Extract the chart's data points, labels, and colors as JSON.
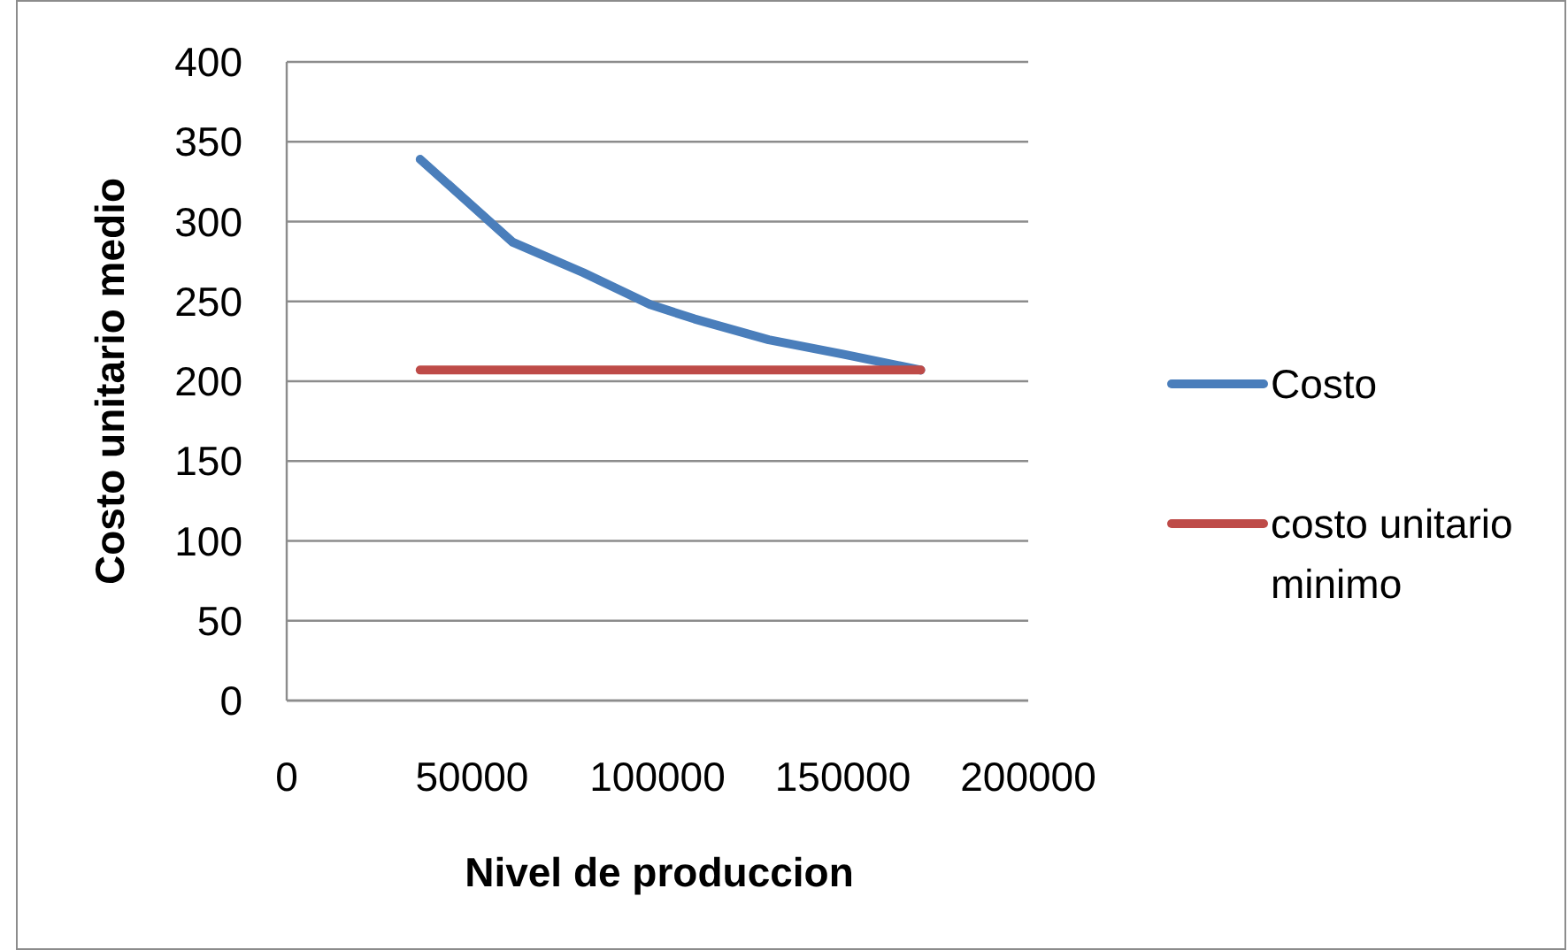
{
  "chart_data": {
    "type": "line",
    "xlabel": "Nivel de produccion",
    "ylabel": "Costo unitario medio",
    "series": [
      {
        "name": "Costo",
        "color": "#4a7ebb",
        "x": [
          36000,
          61000,
          80000,
          98000,
          110000,
          130000,
          150000,
          171000
        ],
        "values": [
          339,
          287,
          268,
          248,
          239,
          226,
          217,
          207
        ]
      },
      {
        "name": "costo unitario minimo",
        "color": "#be4b48",
        "x": [
          36000,
          171000
        ],
        "values": [
          207,
          207
        ]
      }
    ],
    "xlim": [
      0,
      200000
    ],
    "xticks": [
      0,
      50000,
      100000,
      150000,
      200000
    ],
    "ylim": [
      0,
      400
    ],
    "yticks": [
      0,
      50,
      100,
      150,
      200,
      250,
      300,
      350,
      400
    ],
    "grid": "y",
    "legend": "right"
  }
}
